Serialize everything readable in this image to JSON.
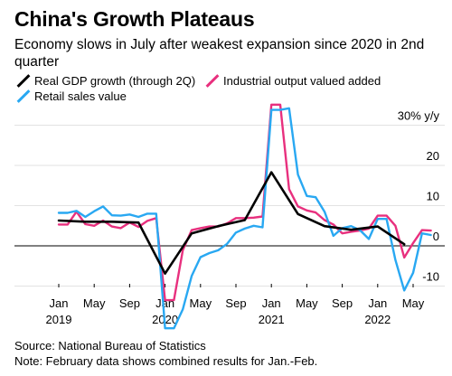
{
  "chart_data": {
    "type": "line",
    "title": "China's Growth Plateaus",
    "subtitle": "Economy slows in July after weakest expansion since 2020 in 2nd quarter",
    "unit_label": "30% y/y",
    "ylim": [
      -12,
      32
    ],
    "y_ticks": [
      30,
      20,
      10,
      0,
      -10
    ],
    "y_tick_labels": [
      "30% y/y",
      "20",
      "10",
      "0",
      "-10"
    ],
    "x_ticks": [
      "2019-01",
      "2019-05",
      "2019-09",
      "2020-01",
      "2020-05",
      "2020-09",
      "2021-01",
      "2021-05",
      "2021-09",
      "2022-01",
      "2022-05"
    ],
    "x_tick_labels": [
      "Jan",
      "May",
      "Sep",
      "Jan",
      "May",
      "Sep",
      "Jan",
      "May",
      "Sep",
      "Jan",
      "May"
    ],
    "year_labels": [
      {
        "x": "2019-01",
        "label": "2019"
      },
      {
        "x": "2020-01",
        "label": "2020"
      },
      {
        "x": "2021-01",
        "label": "2021"
      },
      {
        "x": "2022-01",
        "label": "2022"
      }
    ],
    "grid": true,
    "legend_position": "top-left",
    "series": [
      {
        "name": "Real GDP growth (through 2Q)",
        "color": "#000000",
        "x": [
          "2019-01",
          "2019-04",
          "2019-07",
          "2019-10",
          "2020-01",
          "2020-04",
          "2020-07",
          "2020-10",
          "2021-01",
          "2021-04",
          "2021-07",
          "2021-10",
          "2022-01",
          "2022-04"
        ],
        "y": [
          6.3,
          6.0,
          6.0,
          5.8,
          -6.9,
          3.1,
          4.9,
          6.4,
          18.3,
          7.9,
          4.9,
          4.0,
          4.8,
          0.4
        ]
      },
      {
        "name": "Industrial output valued added",
        "color": "#e8307e",
        "x": [
          "2019-01",
          "2019-02",
          "2019-03",
          "2019-04",
          "2019-05",
          "2019-06",
          "2019-07",
          "2019-08",
          "2019-09",
          "2019-10",
          "2019-11",
          "2019-12",
          "2020-01",
          "2020-02",
          "2020-03",
          "2020-04",
          "2020-05",
          "2020-06",
          "2020-07",
          "2020-08",
          "2020-09",
          "2020-10",
          "2020-11",
          "2020-12",
          "2021-01",
          "2021-02",
          "2021-03",
          "2021-04",
          "2021-05",
          "2021-06",
          "2021-07",
          "2021-08",
          "2021-09",
          "2021-10",
          "2021-11",
          "2021-12",
          "2022-01",
          "2022-02",
          "2022-03",
          "2022-04",
          "2022-05",
          "2022-06",
          "2022-07"
        ],
        "y": [
          5.3,
          5.3,
          8.5,
          5.4,
          5.0,
          6.3,
          4.8,
          4.4,
          5.8,
          4.7,
          6.2,
          6.9,
          -13.5,
          -13.5,
          -1.1,
          3.9,
          4.4,
          4.8,
          4.8,
          5.6,
          6.9,
          6.9,
          7.0,
          7.3,
          35.1,
          35.1,
          14.1,
          9.8,
          8.8,
          8.3,
          6.4,
          5.3,
          3.1,
          3.5,
          3.8,
          4.3,
          7.5,
          7.5,
          5.0,
          -2.9,
          0.7,
          3.9,
          3.8
        ]
      },
      {
        "name": "Retail sales value",
        "color": "#29a8f2",
        "x": [
          "2019-01",
          "2019-02",
          "2019-03",
          "2019-04",
          "2019-05",
          "2019-06",
          "2019-07",
          "2019-08",
          "2019-09",
          "2019-10",
          "2019-11",
          "2019-12",
          "2020-01",
          "2020-02",
          "2020-03",
          "2020-04",
          "2020-05",
          "2020-06",
          "2020-07",
          "2020-08",
          "2020-09",
          "2020-10",
          "2020-11",
          "2020-12",
          "2021-01",
          "2021-02",
          "2021-03",
          "2021-04",
          "2021-05",
          "2021-06",
          "2021-07",
          "2021-08",
          "2021-09",
          "2021-10",
          "2021-11",
          "2021-12",
          "2022-01",
          "2022-02",
          "2022-03",
          "2022-04",
          "2022-05",
          "2022-06",
          "2022-07"
        ],
        "y": [
          8.2,
          8.2,
          8.7,
          7.2,
          8.6,
          9.8,
          7.6,
          7.5,
          7.8,
          7.2,
          8.0,
          8.0,
          -20.5,
          -20.5,
          -15.8,
          -7.5,
          -2.8,
          -1.8,
          -1.1,
          0.5,
          3.3,
          4.3,
          5.0,
          4.6,
          33.8,
          33.8,
          34.2,
          17.7,
          12.4,
          12.1,
          8.5,
          2.5,
          4.4,
          4.9,
          3.9,
          1.7,
          6.7,
          6.7,
          -3.5,
          -11.1,
          -6.7,
          3.1,
          2.7
        ]
      }
    ]
  },
  "legend": [
    {
      "label": "Real GDP growth (through 2Q)",
      "color": "#000000"
    },
    {
      "label": "Industrial output valued added",
      "color": "#e8307e"
    },
    {
      "label": "Retail sales value",
      "color": "#29a8f2"
    }
  ],
  "footer": {
    "source": "Source: National Bureau of Statistics",
    "note": "Note: February data shows combined results for Jan.-Feb."
  }
}
